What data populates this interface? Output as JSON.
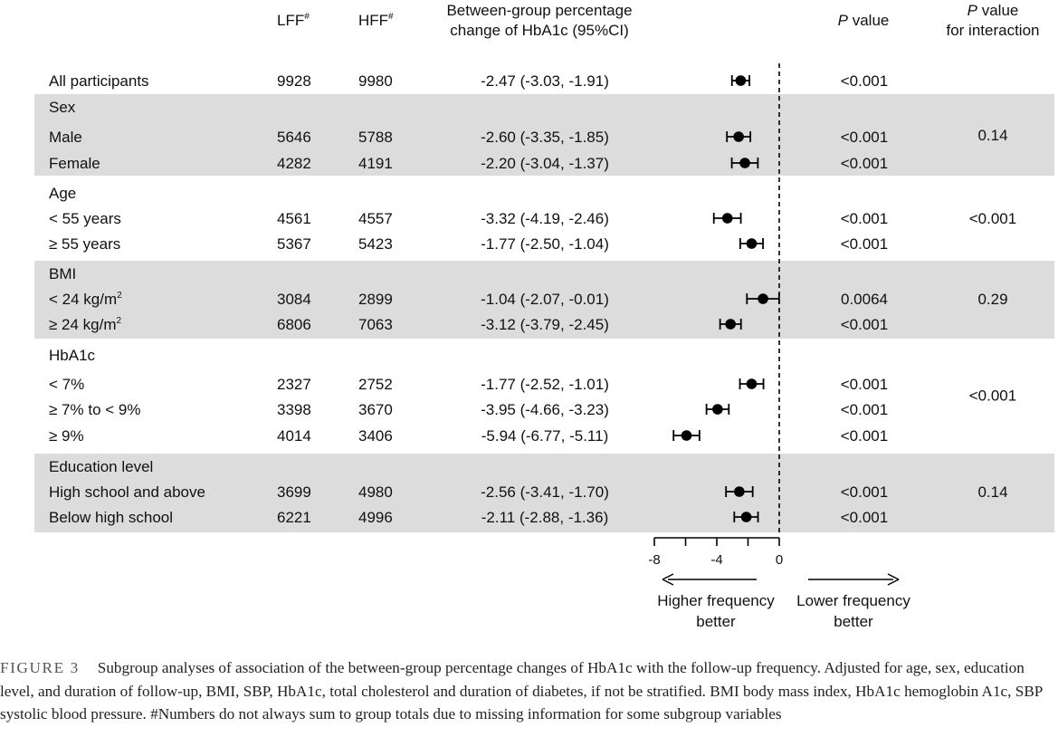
{
  "headers": {
    "lff": "LFF",
    "lff_sup": "#",
    "hff": "HFF",
    "hff_sup": "#",
    "effect_line1": "Between-group percentage",
    "effect_line2": "change of HbA1c (95%CI)",
    "pval_italic": "P",
    "pval_rest": " value",
    "pint_line1_italic": "P",
    "pint_line1_rest": " value",
    "pint_line2": "for interaction"
  },
  "colors": {
    "band": "#dcdcdc",
    "marker": "#000000",
    "text": "#111111"
  },
  "chart_data": {
    "type": "forest",
    "x_axis": {
      "min": -8,
      "max": 0,
      "ticks": [
        -8,
        -4,
        0
      ],
      "minor_ticks": [
        -6,
        -2
      ],
      "tick_labels": [
        "-8",
        "-4",
        "0"
      ],
      "reference_line": 0,
      "left_label_line1": "Higher frequency",
      "left_label_line2": "better",
      "right_label_line1": "Lower frequency",
      "right_label_line2": "better"
    },
    "rows": [
      {
        "label": "All participants",
        "lff": "9928",
        "hff": "9980",
        "ci": "-2.47 (-3.03, -1.91)",
        "est": -2.47,
        "lo": -3.03,
        "hi": -1.91,
        "p": "<0.001",
        "group": 0
      },
      {
        "label": "Sex",
        "header": true,
        "group": 1
      },
      {
        "label": "Male",
        "lff": "5646",
        "hff": "5788",
        "ci": "-2.60 (-3.35, -1.85)",
        "est": -2.6,
        "lo": -3.35,
        "hi": -1.85,
        "p": "<0.001",
        "group": 1
      },
      {
        "label": "Female",
        "lff": "4282",
        "hff": "4191",
        "ci": "-2.20 (-3.04, -1.37)",
        "est": -2.2,
        "lo": -3.04,
        "hi": -1.37,
        "p": "<0.001",
        "group": 1
      },
      {
        "label": "Age",
        "header": true,
        "group": 2
      },
      {
        "label": "< 55 years",
        "lff": "4561",
        "hff": "4557",
        "ci": "-3.32 (-4.19, -2.46)",
        "est": -3.32,
        "lo": -4.19,
        "hi": -2.46,
        "p": "<0.001",
        "group": 2
      },
      {
        "label": "≥ 55 years",
        "lff": "5367",
        "hff": "5423",
        "ci": "-1.77 (-2.50, -1.04)",
        "est": -1.77,
        "lo": -2.5,
        "hi": -1.04,
        "p": "<0.001",
        "group": 2
      },
      {
        "label": "BMI",
        "header": true,
        "group": 3
      },
      {
        "label": "< 24 kg/m",
        "label_sup": "2",
        "lff": "3084",
        "hff": "2899",
        "ci": "-1.04 (-2.07, -0.01)",
        "est": -1.04,
        "lo": -2.07,
        "hi": -0.01,
        "p": "0.0064",
        "group": 3
      },
      {
        "label": "≥ 24 kg/m",
        "label_sup": "2",
        "lff": "6806",
        "hff": "7063",
        "ci": "-3.12 (-3.79, -2.45)",
        "est": -3.12,
        "lo": -3.79,
        "hi": -2.45,
        "p": "<0.001",
        "group": 3
      },
      {
        "label": "HbA1c",
        "header": true,
        "group": 4
      },
      {
        "label": "< 7%",
        "lff": "2327",
        "hff": "2752",
        "ci": "-1.77 (-2.52, -1.01)",
        "est": -1.77,
        "lo": -2.52,
        "hi": -1.01,
        "p": "<0.001",
        "group": 4
      },
      {
        "label": "≥ 7% to < 9%",
        "lff": "3398",
        "hff": "3670",
        "ci": "-3.95 (-4.66, -3.23)",
        "est": -3.95,
        "lo": -4.66,
        "hi": -3.23,
        "p": "<0.001",
        "group": 4
      },
      {
        "label": "≥ 9%",
        "lff": "4014",
        "hff": "3406",
        "ci": "-5.94 (-6.77, -5.11)",
        "est": -5.94,
        "lo": -6.77,
        "hi": -5.11,
        "p": "<0.001",
        "group": 4
      },
      {
        "label": "Education level",
        "header": true,
        "group": 5
      },
      {
        "label": "High school and above",
        "lff": "3699",
        "hff": "4980",
        "ci": "-2.56 (-3.41, -1.70)",
        "est": -2.56,
        "lo": -3.41,
        "hi": -1.7,
        "p": "<0.001",
        "group": 5
      },
      {
        "label": "Below high school",
        "lff": "6221",
        "hff": "4996",
        "ci": "-2.11 (-2.88, -1.36)",
        "est": -2.11,
        "lo": -2.88,
        "hi": -1.36,
        "p": "<0.001",
        "group": 5
      }
    ],
    "interaction": [
      {
        "group": 1,
        "p": "0.14"
      },
      {
        "group": 2,
        "p": "<0.001"
      },
      {
        "group": 3,
        "p": "0.29"
      },
      {
        "group": 4,
        "p": "<0.001"
      },
      {
        "group": 5,
        "p": "0.14"
      }
    ]
  },
  "caption": {
    "figure_label": "FIGURE 3",
    "text": "Subgroup analyses of association of the between-group percentage changes of HbA1c with the follow-up frequency. Adjusted for age, sex, education level, and duration of follow-up, BMI, SBP, HbA1c, total cholesterol and duration of diabetes, if not be stratified. BMI body mass index, HbA1c hemoglobin A1c, SBP systolic blood pressure. #Numbers do not always sum to group totals due to missing information for some subgroup variables"
  }
}
